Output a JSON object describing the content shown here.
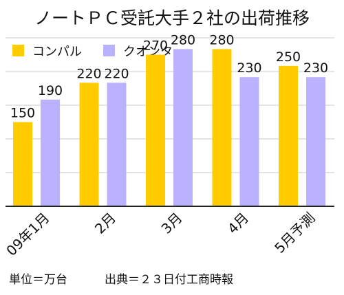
{
  "chart_data": {
    "type": "bar",
    "title": "ノートＰＣ受託大手２社の出荷推移",
    "categories": [
      "09年1月",
      "2月",
      "3月",
      "4月",
      "5月予測"
    ],
    "series": [
      {
        "name": "コンパル",
        "values": [
          150,
          220,
          270,
          280,
          250
        ]
      },
      {
        "name": "クオンタ",
        "values": [
          190,
          220,
          280,
          230,
          230
        ]
      }
    ],
    "ylim": [
      0,
      300
    ],
    "yticks": [
      0,
      60,
      120,
      180,
      240,
      300
    ],
    "grid": true,
    "legend_position": "top-left",
    "colors": [
      "#FFCC00",
      "#BBB2FF"
    ],
    "xlabel": "",
    "ylabel": ""
  },
  "footer": {
    "unit": "単位＝万台",
    "source": "出典＝２３日付工商時報"
  }
}
